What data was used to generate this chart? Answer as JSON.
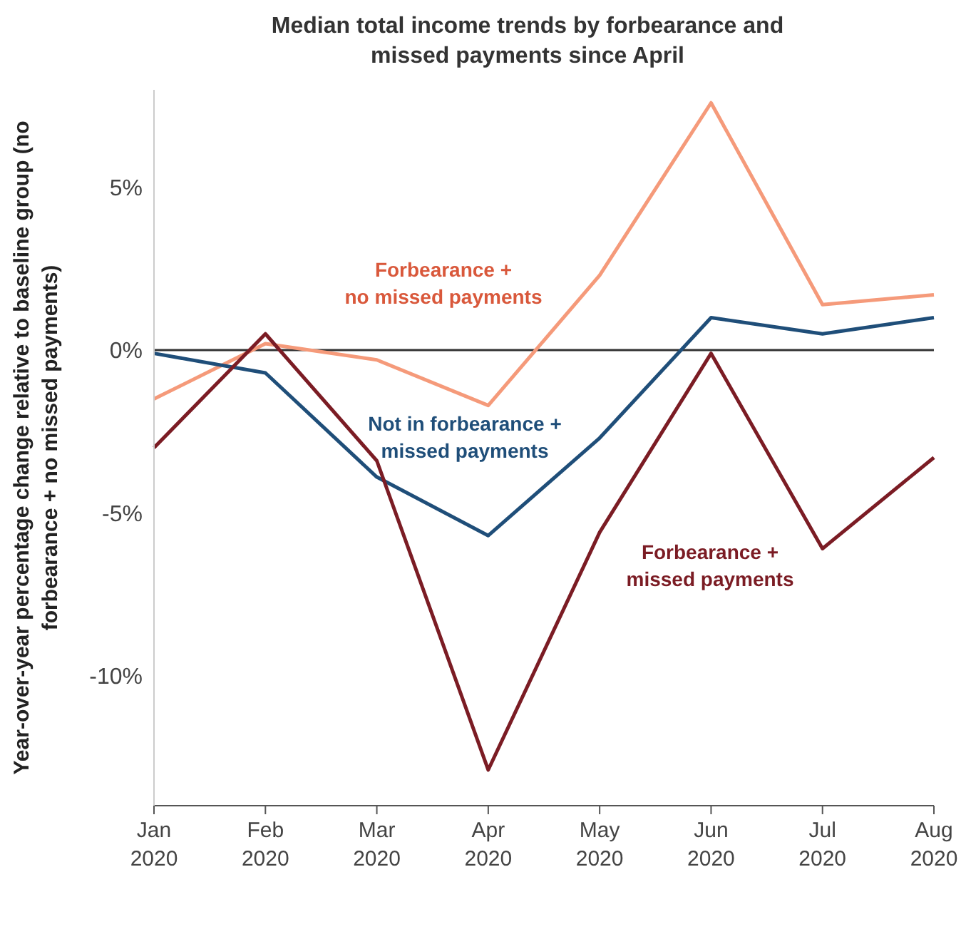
{
  "chart_data": {
    "type": "line",
    "title": "Median total income trends by forbearance and missed payments since April",
    "ylabel": "Year-over-year percentage change relative to baseline group (no forbearance + no missed payments)",
    "categories": [
      "Jan\n2020",
      "Feb\n2020",
      "Mar\n2020",
      "Apr\n2020",
      "May\n2020",
      "Jun\n2020",
      "Jul\n2020",
      "Aug\n2020"
    ],
    "series": [
      {
        "name": "Forbearance +\nno missed payments",
        "color": "#f59a7a",
        "values": [
          -1.5,
          0.2,
          -0.3,
          -1.7,
          2.3,
          7.6,
          1.4,
          1.7
        ]
      },
      {
        "name": "Not in forbearance +\nmissed payments",
        "color": "#1f4e79",
        "values": [
          -0.1,
          -0.7,
          -3.9,
          -5.7,
          -2.7,
          1.0,
          0.5,
          1.0
        ]
      },
      {
        "name": "Forbearance +\nmissed payments",
        "color": "#7b1c24",
        "values": [
          -3.0,
          0.5,
          -3.4,
          -12.9,
          -5.6,
          -0.1,
          -6.1,
          -3.3
        ]
      }
    ],
    "ylim": [
      -14,
      8
    ],
    "yticks": [
      {
        "value": 5,
        "label": "5%"
      },
      {
        "value": 0,
        "label": "0%"
      },
      {
        "value": -5,
        "label": "-5%"
      },
      {
        "value": -10,
        "label": "-10%"
      }
    ],
    "ref_lines": [
      {
        "axis": "y",
        "value": 0,
        "color": "#333333"
      }
    ],
    "grid": false,
    "legend": false,
    "marker": "none",
    "line_style": "solid"
  }
}
